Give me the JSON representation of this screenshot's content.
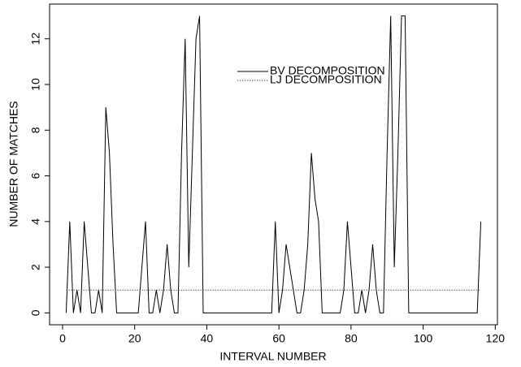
{
  "chart_data": {
    "type": "line",
    "xlabel": "INTERVAL NUMBER",
    "ylabel": "NUMBER OF MATCHES",
    "x": [
      1,
      2,
      3,
      4,
      5,
      6,
      7,
      8,
      9,
      10,
      11,
      12,
      13,
      14,
      15,
      16,
      17,
      18,
      19,
      20,
      21,
      22,
      23,
      24,
      25,
      26,
      27,
      28,
      29,
      30,
      31,
      32,
      33,
      34,
      35,
      36,
      37,
      38,
      39,
      40,
      41,
      42,
      43,
      44,
      45,
      46,
      47,
      48,
      49,
      50,
      51,
      52,
      53,
      54,
      55,
      56,
      57,
      58,
      59,
      60,
      61,
      62,
      63,
      64,
      65,
      66,
      67,
      68,
      69,
      70,
      71,
      72,
      73,
      74,
      75,
      76,
      77,
      78,
      79,
      80,
      81,
      82,
      83,
      84,
      85,
      86,
      87,
      88,
      89,
      90,
      91,
      92,
      93,
      94,
      95,
      96,
      97,
      98,
      99,
      100,
      101,
      102,
      103,
      104,
      105,
      106,
      107,
      108,
      109,
      110,
      111,
      112,
      113,
      114,
      115,
      116
    ],
    "series": [
      {
        "name": "BV DECOMPOSITION",
        "color": "#000000",
        "style": "solid",
        "values": [
          0,
          4,
          0,
          1,
          0,
          4,
          2,
          0,
          0,
          1,
          0,
          9,
          7,
          3,
          0,
          0,
          0,
          0,
          0,
          0,
          0,
          2,
          4,
          0,
          0,
          1,
          0,
          1,
          3,
          1,
          0,
          0,
          7,
          12,
          2,
          7,
          12,
          13,
          0,
          0,
          0,
          0,
          0,
          0,
          0,
          0,
          0,
          0,
          0,
          0,
          0,
          0,
          0,
          0,
          0,
          0,
          0,
          0,
          4,
          0,
          1,
          3,
          2,
          1,
          0,
          0,
          1,
          3,
          7,
          5,
          4,
          0,
          0,
          0,
          0,
          0,
          0,
          1,
          4,
          2,
          0,
          0,
          1,
          0,
          1,
          3,
          1,
          0,
          0,
          7,
          13,
          2,
          7,
          13,
          13,
          0,
          0,
          0,
          0,
          0,
          0,
          0,
          0,
          0,
          0,
          0,
          0,
          0,
          0,
          0,
          0,
          0,
          0,
          0,
          0,
          4
        ]
      },
      {
        "name": "LJ DECOMPOSITION",
        "color": "#555555",
        "style": "dotted",
        "values": [
          1,
          1,
          1,
          1,
          1,
          1,
          1,
          1,
          1,
          1,
          1,
          1,
          1,
          1,
          1,
          1,
          1,
          1,
          1,
          1,
          1,
          1,
          1,
          1,
          1,
          1,
          1,
          1,
          1,
          1,
          1,
          1,
          1,
          1,
          1,
          1,
          1,
          1,
          1,
          1,
          1,
          1,
          1,
          1,
          1,
          1,
          1,
          1,
          1,
          1,
          1,
          1,
          1,
          1,
          1,
          1,
          1,
          1,
          1,
          1,
          1,
          1,
          1,
          1,
          1,
          1,
          1,
          1,
          1,
          1,
          1,
          1,
          1,
          1,
          1,
          1,
          1,
          1,
          1,
          1,
          1,
          1,
          1,
          1,
          1,
          1,
          1,
          1,
          1,
          1,
          1,
          1,
          1,
          1,
          1,
          1,
          1,
          1,
          1,
          1,
          1,
          1,
          1,
          1,
          1,
          1,
          1,
          1,
          1,
          1,
          1,
          1,
          1,
          1,
          1,
          1
        ]
      }
    ],
    "xlim": [
      -3.6,
      120.6
    ],
    "xticks": [
      0,
      20,
      40,
      60,
      80,
      100,
      120
    ],
    "ylim": [
      -0.52,
      13.52
    ],
    "yticks": [
      0,
      2,
      4,
      6,
      8,
      10,
      12
    ],
    "legend": "top",
    "grid": false
  }
}
